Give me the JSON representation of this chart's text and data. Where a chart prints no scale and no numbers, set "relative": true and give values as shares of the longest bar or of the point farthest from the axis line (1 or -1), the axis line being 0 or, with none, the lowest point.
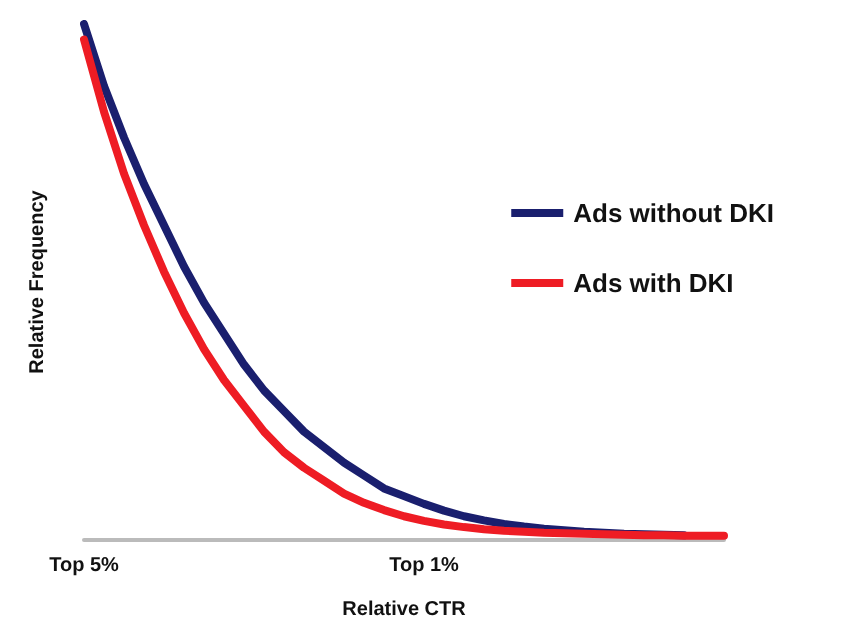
{
  "chart_data": {
    "type": "line",
    "relative": true,
    "xlabel": "Relative CTR",
    "ylabel": "Relative Frequency",
    "categories": [
      "Top 5%",
      null,
      null,
      null,
      null,
      null,
      null,
      null,
      null,
      null,
      null,
      null,
      null,
      null,
      null,
      null,
      null,
      "Top 1%",
      null,
      null,
      null,
      null,
      null,
      null,
      null,
      null,
      null,
      null,
      null,
      null,
      null,
      null,
      null
    ],
    "series": [
      {
        "name": "Ads without DKI",
        "color": "#1a1f6e",
        "values": [
          1.0,
          0.88,
          0.78,
          0.69,
          0.61,
          0.53,
          0.46,
          0.4,
          0.34,
          0.29,
          0.25,
          0.21,
          0.18,
          0.15,
          0.125,
          0.1,
          0.085,
          0.07,
          0.057,
          0.046,
          0.038,
          0.031,
          0.026,
          0.022,
          0.019,
          0.016,
          0.014,
          0.012,
          0.011,
          0.01,
          0.009,
          null,
          null
        ]
      },
      {
        "name": "Ads with DKI",
        "color": "#ee1c24",
        "values": [
          0.97,
          0.83,
          0.71,
          0.61,
          0.52,
          0.44,
          0.37,
          0.31,
          0.26,
          0.21,
          0.17,
          0.14,
          0.115,
          0.09,
          0.072,
          0.058,
          0.046,
          0.037,
          0.03,
          0.025,
          0.021,
          0.018,
          0.016,
          0.014,
          0.013,
          0.012,
          0.011,
          0.01,
          0.009,
          0.009,
          0.008,
          0.008,
          0.008
        ]
      }
    ],
    "legend": "right",
    "grid": false,
    "marker": "none",
    "line_style": "solid"
  }
}
